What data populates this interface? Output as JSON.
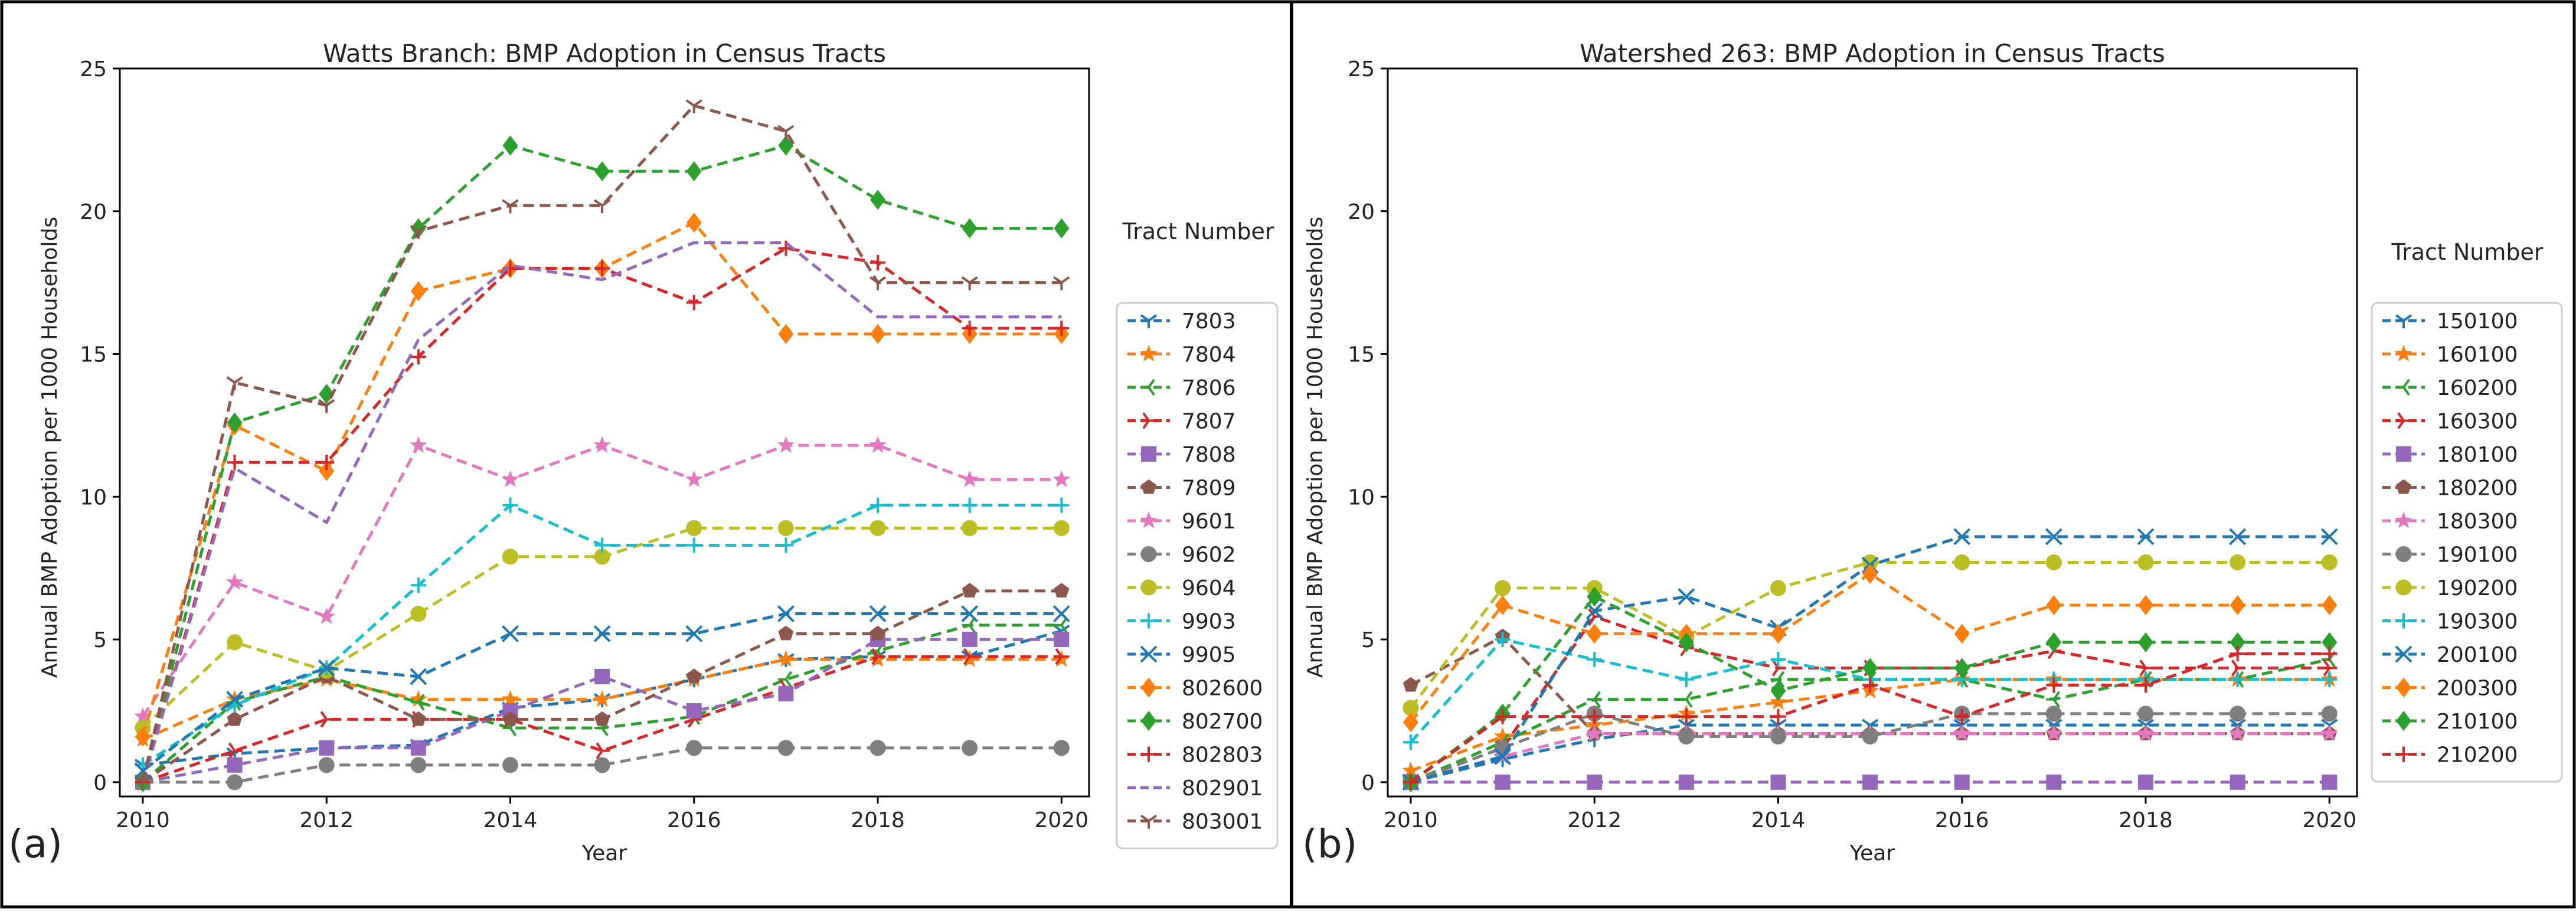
{
  "x_values": [
    2010,
    2011,
    2012,
    2013,
    2014,
    2015,
    2016,
    2017,
    2018,
    2019,
    2020
  ],
  "chart_data": [
    {
      "type": "line",
      "panel_label": "(a)",
      "title": "Watts Branch: BMP Adoption in Census Tracts",
      "xlabel": "Year",
      "ylabel": "Annual BMP Adoption per 1000 Households",
      "xlim": [
        2009.75,
        2020.3
      ],
      "ylim": [
        -0.5,
        25
      ],
      "xticks": [
        "2010",
        "2012",
        "2014",
        "2016",
        "2018",
        "2020"
      ],
      "yticks": [
        "0",
        "5",
        "10",
        "15",
        "20",
        "25"
      ],
      "legend_title": "Tract Number",
      "legend_position": "right",
      "series": [
        {
          "name": "7803",
          "color": "#1f77b4",
          "marker": "tri_down",
          "values": [
            0.6,
            1.0,
            1.2,
            1.3,
            2.6,
            2.9,
            3.6,
            4.3,
            4.4,
            4.4,
            5.3
          ]
        },
        {
          "name": "7804",
          "color": "#ff7f0e",
          "marker": "star",
          "values": [
            1.5,
            2.9,
            3.6,
            2.9,
            2.9,
            2.9,
            3.6,
            4.3,
            4.3,
            4.3,
            4.3
          ]
        },
        {
          "name": "7806",
          "color": "#2ca02c",
          "marker": "tri_left",
          "values": [
            0.0,
            2.8,
            3.7,
            2.8,
            1.9,
            1.9,
            2.3,
            3.6,
            4.6,
            5.5,
            5.5
          ]
        },
        {
          "name": "7807",
          "color": "#d62728",
          "marker": "tri_right",
          "values": [
            0.0,
            1.1,
            2.2,
            2.2,
            2.2,
            1.1,
            2.2,
            3.3,
            4.4,
            4.4,
            4.4
          ]
        },
        {
          "name": "7808",
          "color": "#9467bd",
          "marker": "square",
          "values": [
            0.0,
            0.6,
            1.2,
            1.2,
            2.5,
            3.7,
            2.5,
            3.1,
            5.0,
            5.0,
            5.0
          ]
        },
        {
          "name": "7809",
          "color": "#8c564b",
          "marker": "pentagon",
          "values": [
            0.0,
            2.2,
            3.7,
            2.2,
            2.2,
            2.2,
            3.7,
            5.2,
            5.2,
            6.7,
            6.7
          ]
        },
        {
          "name": "9601",
          "color": "#e377c2",
          "marker": "star",
          "values": [
            2.3,
            7.0,
            5.8,
            11.8,
            10.6,
            11.8,
            10.6,
            11.8,
            11.8,
            10.6,
            10.6
          ]
        },
        {
          "name": "9602",
          "color": "#7f7f7f",
          "marker": "circle",
          "values": [
            0.0,
            0.0,
            0.6,
            0.6,
            0.6,
            0.6,
            1.2,
            1.2,
            1.2,
            1.2,
            1.2
          ]
        },
        {
          "name": "9604",
          "color": "#bcbd22",
          "marker": "circle",
          "values": [
            1.9,
            4.9,
            3.9,
            5.9,
            7.9,
            7.9,
            8.9,
            8.9,
            8.9,
            8.9,
            8.9
          ]
        },
        {
          "name": "9903",
          "color": "#17becf",
          "marker": "plus",
          "values": [
            0.6,
            2.7,
            4.0,
            6.9,
            9.7,
            8.3,
            8.3,
            8.3,
            9.7,
            9.7,
            9.7
          ]
        },
        {
          "name": "9905",
          "color": "#1f77b4",
          "marker": "x",
          "values": [
            0.4,
            2.9,
            4.0,
            3.7,
            5.2,
            5.2,
            5.2,
            5.9,
            5.9,
            5.9,
            5.9
          ]
        },
        {
          "name": "802600",
          "color": "#ff7f0e",
          "marker": "diamond",
          "values": [
            1.6,
            12.5,
            10.9,
            17.2,
            18.0,
            18.0,
            19.6,
            15.7,
            15.7,
            15.7,
            15.7
          ]
        },
        {
          "name": "802700",
          "color": "#2ca02c",
          "marker": "diamond",
          "values": [
            0.0,
            12.6,
            13.6,
            19.4,
            22.3,
            21.4,
            21.4,
            22.3,
            20.4,
            19.4,
            19.4
          ]
        },
        {
          "name": "802803",
          "color": "#d62728",
          "marker": "plus",
          "values": [
            0.0,
            11.2,
            11.2,
            14.9,
            18.0,
            18.0,
            16.8,
            18.7,
            18.2,
            15.9,
            15.9
          ]
        },
        {
          "name": "802901",
          "color": "#9467bd",
          "marker": "none",
          "values": [
            0.0,
            11.0,
            9.1,
            15.5,
            18.1,
            17.6,
            18.9,
            18.9,
            16.3,
            16.3,
            16.3
          ]
        },
        {
          "name": "803001",
          "color": "#8c564b",
          "marker": "tri_down",
          "values": [
            0.0,
            14.0,
            13.2,
            19.3,
            20.2,
            20.2,
            23.7,
            22.8,
            17.5,
            17.5,
            17.5
          ]
        }
      ]
    },
    {
      "type": "line",
      "panel_label": "(b)",
      "title": "Watershed 263: BMP Adoption in Census Tracts",
      "xlabel": "Year",
      "ylabel": "Annual BMP Adoption per 1000 Households",
      "xlim": [
        2009.75,
        2020.3
      ],
      "ylim": [
        -0.5,
        25
      ],
      "xticks": [
        "2010",
        "2012",
        "2014",
        "2016",
        "2018",
        "2020"
      ],
      "yticks": [
        "0",
        "5",
        "10",
        "15",
        "20",
        "25"
      ],
      "legend_title": "Tract Number",
      "legend_position": "right",
      "series": [
        {
          "name": "150100",
          "color": "#1f77b4",
          "marker": "tri_down",
          "values": [
            0.0,
            0.8,
            1.5,
            2.0,
            2.0,
            2.0,
            2.0,
            2.0,
            2.0,
            2.0,
            2.0
          ]
        },
        {
          "name": "160100",
          "color": "#ff7f0e",
          "marker": "star",
          "values": [
            0.4,
            1.6,
            2.0,
            2.4,
            2.8,
            3.2,
            3.6,
            3.6,
            3.6,
            3.6,
            3.6
          ]
        },
        {
          "name": "160200",
          "color": "#2ca02c",
          "marker": "tri_left",
          "values": [
            0.0,
            1.4,
            2.9,
            2.9,
            3.6,
            3.6,
            3.6,
            2.9,
            3.6,
            3.6,
            4.3
          ]
        },
        {
          "name": "160300",
          "color": "#d62728",
          "marker": "tri_right",
          "values": [
            0.0,
            1.2,
            5.8,
            4.7,
            4.0,
            4.0,
            4.0,
            4.6,
            4.0,
            4.0,
            4.0
          ]
        },
        {
          "name": "180100",
          "color": "#9467bd",
          "marker": "square",
          "values": [
            0.0,
            0.0,
            0.0,
            0.0,
            0.0,
            0.0,
            0.0,
            0.0,
            0.0,
            0.0,
            0.0
          ]
        },
        {
          "name": "180200",
          "color": "#8c564b",
          "marker": "pentagon",
          "values": [
            3.4,
            5.1,
            1.7,
            1.7,
            1.7,
            1.7,
            1.7,
            1.7,
            1.7,
            1.7,
            1.7
          ]
        },
        {
          "name": "180300",
          "color": "#e377c2",
          "marker": "star",
          "values": [
            0.0,
            0.9,
            1.7,
            1.7,
            1.7,
            1.7,
            1.7,
            1.7,
            1.7,
            1.7,
            1.7
          ]
        },
        {
          "name": "190100",
          "color": "#7f7f7f",
          "marker": "circle",
          "values": [
            0.0,
            1.2,
            2.4,
            1.6,
            1.6,
            1.6,
            2.4,
            2.4,
            2.4,
            2.4,
            2.4
          ]
        },
        {
          "name": "190200",
          "color": "#bcbd22",
          "marker": "circle",
          "values": [
            2.6,
            6.8,
            6.8,
            5.1,
            6.8,
            7.7,
            7.7,
            7.7,
            7.7,
            7.7,
            7.7
          ]
        },
        {
          "name": "190300",
          "color": "#17becf",
          "marker": "plus",
          "values": [
            1.4,
            5.0,
            4.3,
            3.6,
            4.3,
            3.6,
            3.6,
            3.6,
            3.6,
            3.6,
            3.6
          ]
        },
        {
          "name": "200100",
          "color": "#1f77b4",
          "marker": "x",
          "values": [
            0.0,
            0.9,
            6.0,
            6.5,
            5.4,
            7.6,
            8.6,
            8.6,
            8.6,
            8.6,
            8.6
          ]
        },
        {
          "name": "200300",
          "color": "#ff7f0e",
          "marker": "diamond",
          "values": [
            2.1,
            6.2,
            5.2,
            5.2,
            5.2,
            7.3,
            5.2,
            6.2,
            6.2,
            6.2,
            6.2
          ]
        },
        {
          "name": "210100",
          "color": "#2ca02c",
          "marker": "diamond",
          "values": [
            0.0,
            2.4,
            6.5,
            4.9,
            3.2,
            4.0,
            4.0,
            4.9,
            4.9,
            4.9,
            4.9
          ]
        },
        {
          "name": "210200",
          "color": "#d62728",
          "marker": "plus",
          "values": [
            0.0,
            2.3,
            2.3,
            2.3,
            2.3,
            3.4,
            2.3,
            3.4,
            3.4,
            4.5,
            4.5
          ]
        }
      ]
    }
  ]
}
